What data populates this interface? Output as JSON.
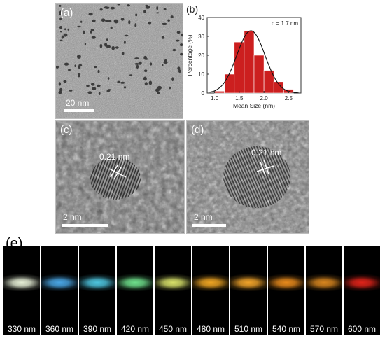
{
  "panels": {
    "a": {
      "label": "(a)",
      "scale": "20 nm"
    },
    "b": {
      "label": "(b)"
    },
    "c": {
      "label": "(c)",
      "scale": "2 nm",
      "lattice": "0.21 nm"
    },
    "d": {
      "label": "(d)",
      "scale": "2 nm",
      "lattice": "0.21 nm"
    },
    "e": {
      "label": "(e)"
    }
  },
  "chart_data": {
    "type": "bar",
    "annotation": "d = 1.7 nm",
    "xlabel": "Mean Size (nm)",
    "ylabel": "Percentage (%)",
    "x": [
      1.1,
      1.3,
      1.5,
      1.7,
      1.9,
      2.1,
      2.3,
      2.5
    ],
    "values": [
      1,
      10,
      27,
      33,
      20,
      12,
      6,
      2
    ],
    "xlim": [
      0.85,
      2.75
    ],
    "ylim": [
      0,
      40
    ],
    "xticks": [
      "1.0",
      "1.5",
      "2.0",
      "2.5"
    ],
    "yticks": [
      "0",
      "10",
      "20",
      "30",
      "40"
    ],
    "fit_curve": "gaussian",
    "bar_color": "#cc1f1f"
  },
  "emission": {
    "tiles": [
      {
        "wavelength": "330 nm",
        "color": "#e8f1d8"
      },
      {
        "wavelength": "360 nm",
        "color": "#4aa7e6"
      },
      {
        "wavelength": "390 nm",
        "color": "#4ec6e0"
      },
      {
        "wavelength": "420 nm",
        "color": "#6fe08c"
      },
      {
        "wavelength": "450 nm",
        "color": "#d8e26a"
      },
      {
        "wavelength": "480 nm",
        "color": "#f0a623"
      },
      {
        "wavelength": "510 nm",
        "color": "#f2a42a"
      },
      {
        "wavelength": "540 nm",
        "color": "#e98b1c"
      },
      {
        "wavelength": "570 nm",
        "color": "#d8861f"
      },
      {
        "wavelength": "600 nm",
        "color": "#e0241a"
      }
    ]
  }
}
